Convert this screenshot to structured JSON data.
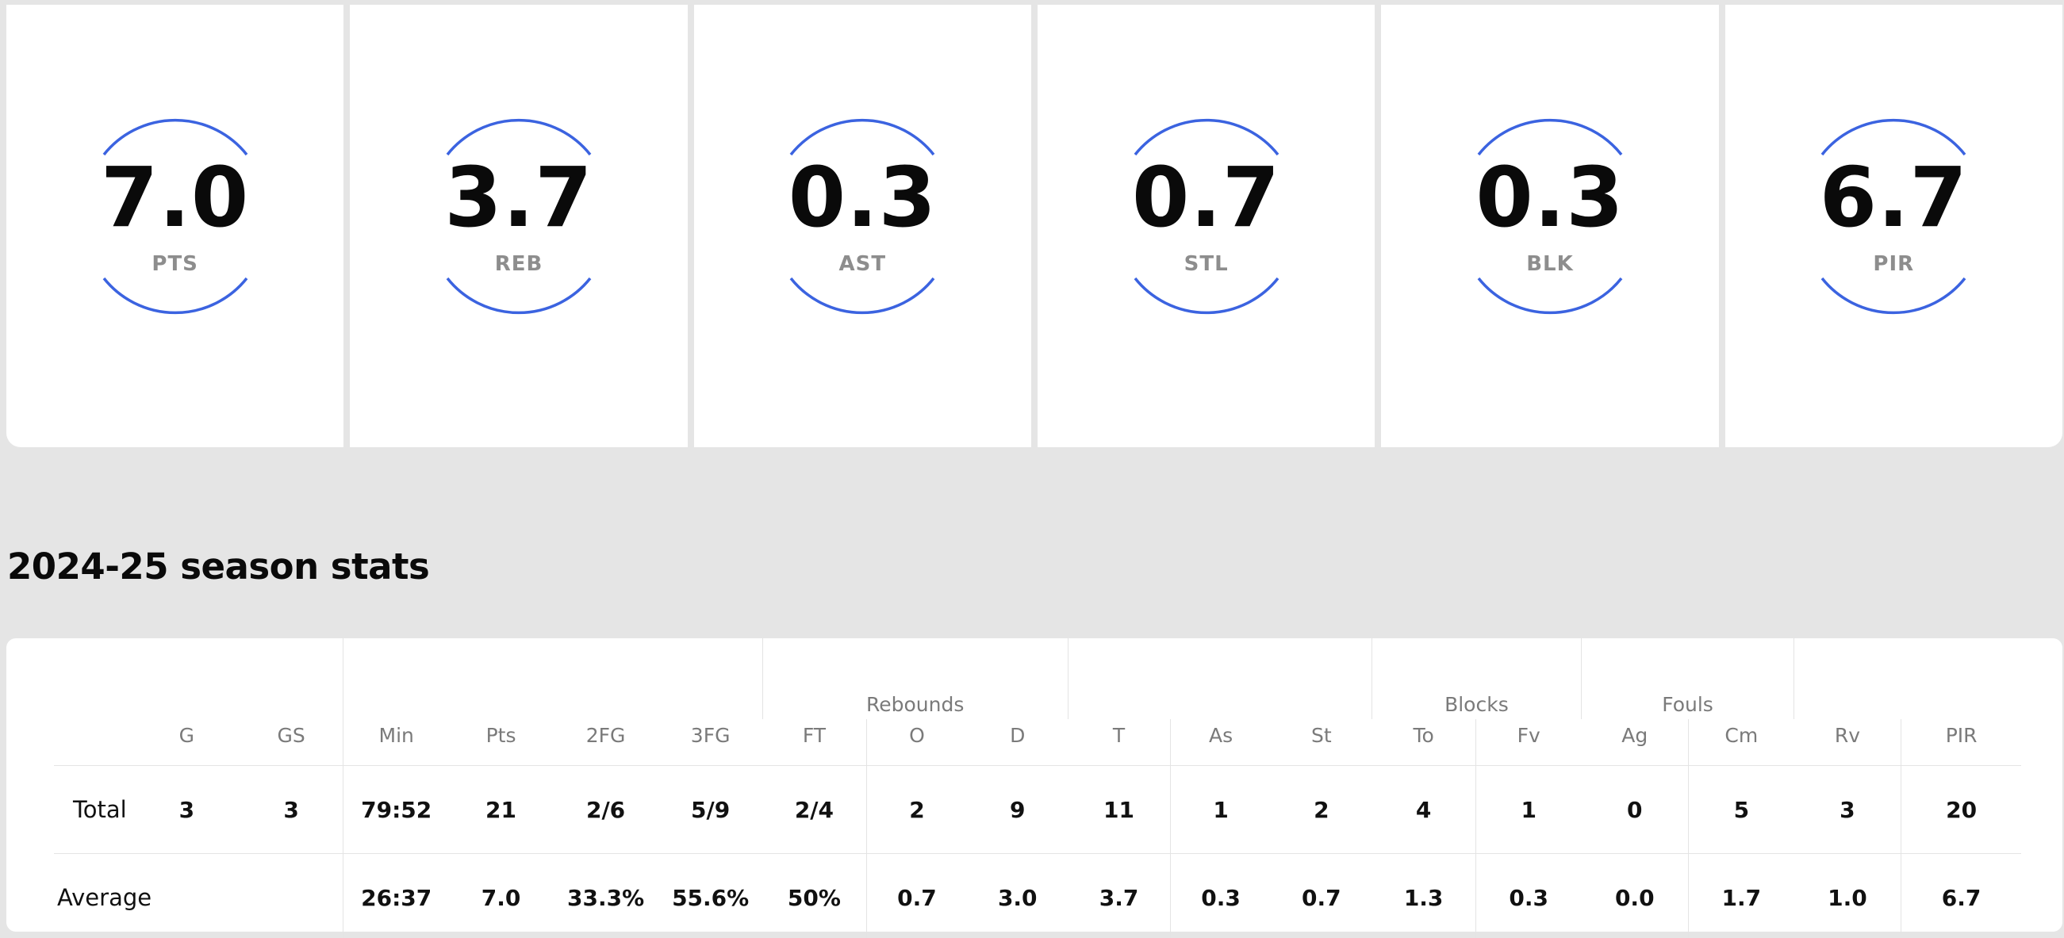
{
  "stat_cards": [
    {
      "value": "7.0",
      "label": "PTS"
    },
    {
      "value": "3.7",
      "label": "REB"
    },
    {
      "value": "0.3",
      "label": "AST"
    },
    {
      "value": "0.7",
      "label": "STL"
    },
    {
      "value": "0.3",
      "label": "BLK"
    },
    {
      "value": "6.7",
      "label": "PIR"
    }
  ],
  "accent_color": "#3b63e0",
  "section_title": "2024-25 season stats",
  "table": {
    "group_headers": {
      "rebounds": "Rebounds",
      "blocks": "Blocks",
      "fouls": "Fouls"
    },
    "columns": [
      "G",
      "GS",
      "Min",
      "Pts",
      "2FG",
      "3FG",
      "FT",
      "O",
      "D",
      "T",
      "As",
      "St",
      "To",
      "Fv",
      "Ag",
      "Cm",
      "Rv",
      "PIR"
    ],
    "rows": [
      {
        "label": "Total",
        "cells": [
          "3",
          "3",
          "79:52",
          "21",
          "2/6",
          "5/9",
          "2/4",
          "2",
          "9",
          "11",
          "1",
          "2",
          "4",
          "1",
          "0",
          "5",
          "3",
          "20"
        ]
      },
      {
        "label": "Average",
        "cells": [
          "",
          "",
          "26:37",
          "7.0",
          "33.3%",
          "55.6%",
          "50%",
          "0.7",
          "3.0",
          "3.7",
          "0.3",
          "0.7",
          "1.3",
          "0.3",
          "0.0",
          "1.7",
          "1.0",
          "6.7"
        ]
      }
    ]
  }
}
